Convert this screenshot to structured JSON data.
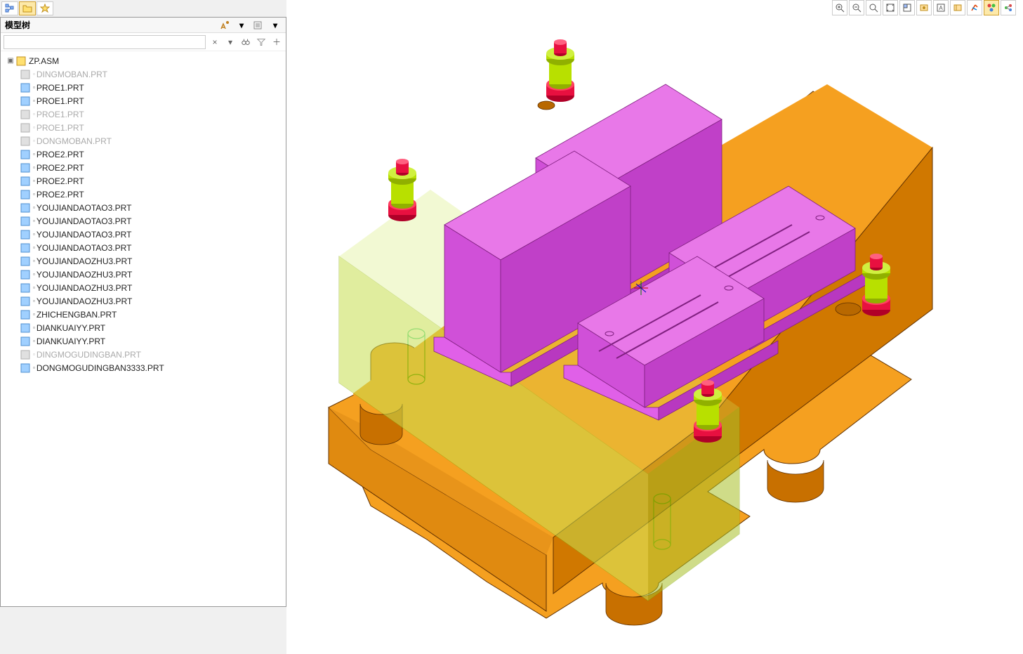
{
  "panel": {
    "title": "模型树",
    "search_placeholder": ""
  },
  "tree": {
    "root": {
      "label": "ZP.ASM",
      "type": "asm"
    },
    "children": [
      {
        "label": "DINGMOBAN.PRT",
        "type": "prt",
        "hidden": true
      },
      {
        "label": "PROE1.PRT",
        "type": "prt",
        "hidden": false
      },
      {
        "label": "PROE1.PRT",
        "type": "prt",
        "hidden": false
      },
      {
        "label": "PROE1.PRT",
        "type": "prt",
        "hidden": true
      },
      {
        "label": "PROE1.PRT",
        "type": "prt",
        "hidden": true
      },
      {
        "label": "DONGMOBAN.PRT",
        "type": "prt",
        "hidden": true
      },
      {
        "label": "PROE2.PRT",
        "type": "prt",
        "hidden": false
      },
      {
        "label": "PROE2.PRT",
        "type": "prt",
        "hidden": false
      },
      {
        "label": "PROE2.PRT",
        "type": "prt",
        "hidden": false
      },
      {
        "label": "PROE2.PRT",
        "type": "prt",
        "hidden": false
      },
      {
        "label": "YOUJIANDAOTAO3.PRT",
        "type": "prt",
        "hidden": false
      },
      {
        "label": "YOUJIANDAOTAO3.PRT",
        "type": "prt",
        "hidden": false
      },
      {
        "label": "YOUJIANDAOTAO3.PRT",
        "type": "prt",
        "hidden": false
      },
      {
        "label": "YOUJIANDAOTAO3.PRT",
        "type": "prt",
        "hidden": false
      },
      {
        "label": "YOUJIANDAOZHU3.PRT",
        "type": "prt",
        "hidden": false
      },
      {
        "label": "YOUJIANDAOZHU3.PRT",
        "type": "prt",
        "hidden": false
      },
      {
        "label": "YOUJIANDAOZHU3.PRT",
        "type": "prt",
        "hidden": false
      },
      {
        "label": "YOUJIANDAOZHU3.PRT",
        "type": "prt",
        "hidden": false
      },
      {
        "label": "ZHICHENGBAN.PRT",
        "type": "prt",
        "hidden": false
      },
      {
        "label": "DIANKUAIYY.PRT",
        "type": "prt",
        "hidden": false
      },
      {
        "label": "DIANKUAIYY.PRT",
        "type": "prt",
        "hidden": false
      },
      {
        "label": "DINGMOGUDINGBAN.PRT",
        "type": "prt",
        "hidden": true
      },
      {
        "label": "DONGMOGUDINGBAN3333.PRT",
        "type": "prt",
        "hidden": false
      }
    ]
  },
  "viewport_colors": {
    "background": "#ffffff",
    "plate_top": "#f5a020",
    "plate_side": "#d07800",
    "plate_front": "#e08a10",
    "block_top": "#e060e8",
    "block_side": "#c040c8",
    "block_front": "#d050d8",
    "pin_green": "#b8e000",
    "pin_green_dark": "#90b000",
    "pin_red": "#e81040",
    "pin_red_dark": "#b00028",
    "transparent_block": "#b8d030",
    "wire_green": "#40c000",
    "edge": "#603000",
    "edge_pink": "#802080"
  },
  "view_tabs": [
    {
      "name": "tree-view",
      "active": false
    },
    {
      "name": "folder-view",
      "active": true
    },
    {
      "name": "favorites-view",
      "active": false
    }
  ],
  "toolbar_buttons": [
    "zoom-in",
    "zoom-out",
    "zoom-fit",
    "refit",
    "window",
    "saved-views",
    "named-views",
    "view-mgr",
    "annotations",
    "appearance",
    "perspective"
  ]
}
